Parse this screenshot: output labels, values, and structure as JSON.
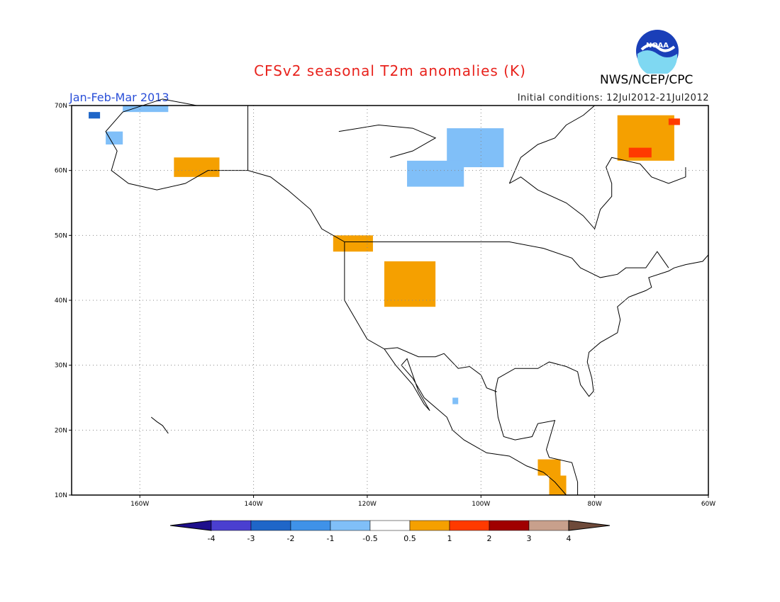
{
  "title": "CFSv2 seasonal T2m anomalies (K)",
  "period": "Jan-Feb-Mar 2013",
  "initial_conditions": "Initial conditions: 12Jul2012-21Jul2012",
  "agency": "NWS/NCEP/CPC",
  "logo_text": "NOAA",
  "map": {
    "lon_range": [
      -172,
      -60
    ],
    "lat_range": [
      10,
      70
    ],
    "lon_ticks": [
      {
        "value": -160,
        "label": "160W"
      },
      {
        "value": -140,
        "label": "140W"
      },
      {
        "value": -120,
        "label": "120W"
      },
      {
        "value": -100,
        "label": "100W"
      },
      {
        "value": -80,
        "label": "80W"
      },
      {
        "value": -60,
        "label": "60W"
      }
    ],
    "lat_ticks": [
      {
        "value": 10,
        "label": "10N"
      },
      {
        "value": 20,
        "label": "20N"
      },
      {
        "value": 30,
        "label": "30N"
      },
      {
        "value": 40,
        "label": "40N"
      },
      {
        "value": 50,
        "label": "50N"
      },
      {
        "value": 60,
        "label": "60N"
      },
      {
        "value": 70,
        "label": "70N"
      }
    ],
    "grid": true
  },
  "colorbar": {
    "labels": [
      "-4",
      "-3",
      "-2",
      "-1",
      "-0.5",
      "0.5",
      "1",
      "2",
      "3",
      "4"
    ],
    "colors": [
      "#1e0f8c",
      "#4a3fd0",
      "#1f66c8",
      "#3f92e8",
      "#80bff8",
      "#ffffff",
      "#f5a000",
      "#ff3a00",
      "#a00000",
      "#c8a08c",
      "#6e4a3a"
    ]
  },
  "anomaly_regions": [
    {
      "level": "-1",
      "color": "#80bff8",
      "lon": [
        -106,
        -96
      ],
      "lat": [
        60.5,
        66.5
      ]
    },
    {
      "level": "-1",
      "color": "#80bff8",
      "lon": [
        -113,
        -103
      ],
      "lat": [
        57.5,
        61.5
      ]
    },
    {
      "level": "-1",
      "color": "#80bff8",
      "lon": [
        -163,
        -155
      ],
      "lat": [
        69,
        70
      ]
    },
    {
      "level": "-1",
      "color": "#80bff8",
      "lon": [
        -166,
        -163
      ],
      "lat": [
        64,
        66
      ]
    },
    {
      "level": "-2",
      "color": "#1f66c8",
      "lon": [
        -169,
        -167
      ],
      "lat": [
        68,
        69
      ]
    },
    {
      "level": "-1",
      "color": "#80bff8",
      "lon": [
        -105,
        -104
      ],
      "lat": [
        24,
        25
      ]
    },
    {
      "level": "0.5",
      "color": "#f5a000",
      "lon": [
        -154,
        -146
      ],
      "lat": [
        59,
        62
      ]
    },
    {
      "level": "0.5",
      "color": "#f5a000",
      "lon": [
        -126,
        -119
      ],
      "lat": [
        47.5,
        50
      ]
    },
    {
      "level": "0.5",
      "color": "#f5a000",
      "lon": [
        -117,
        -108
      ],
      "lat": [
        39,
        46
      ]
    },
    {
      "level": "0.5",
      "color": "#f5a000",
      "lon": [
        -76,
        -66
      ],
      "lat": [
        61.5,
        68.5
      ]
    },
    {
      "level": "1",
      "color": "#ff3a00",
      "lon": [
        -74,
        -70
      ],
      "lat": [
        62,
        63.5
      ]
    },
    {
      "level": "1",
      "color": "#ff3a00",
      "lon": [
        -67,
        -65
      ],
      "lat": [
        67,
        68
      ]
    },
    {
      "level": "0.5",
      "color": "#f5a000",
      "lon": [
        -90,
        -86
      ],
      "lat": [
        13,
        15.5
      ]
    },
    {
      "level": "0.5",
      "color": "#f5a000",
      "lon": [
        -88,
        -85
      ],
      "lat": [
        10,
        13
      ]
    }
  ]
}
